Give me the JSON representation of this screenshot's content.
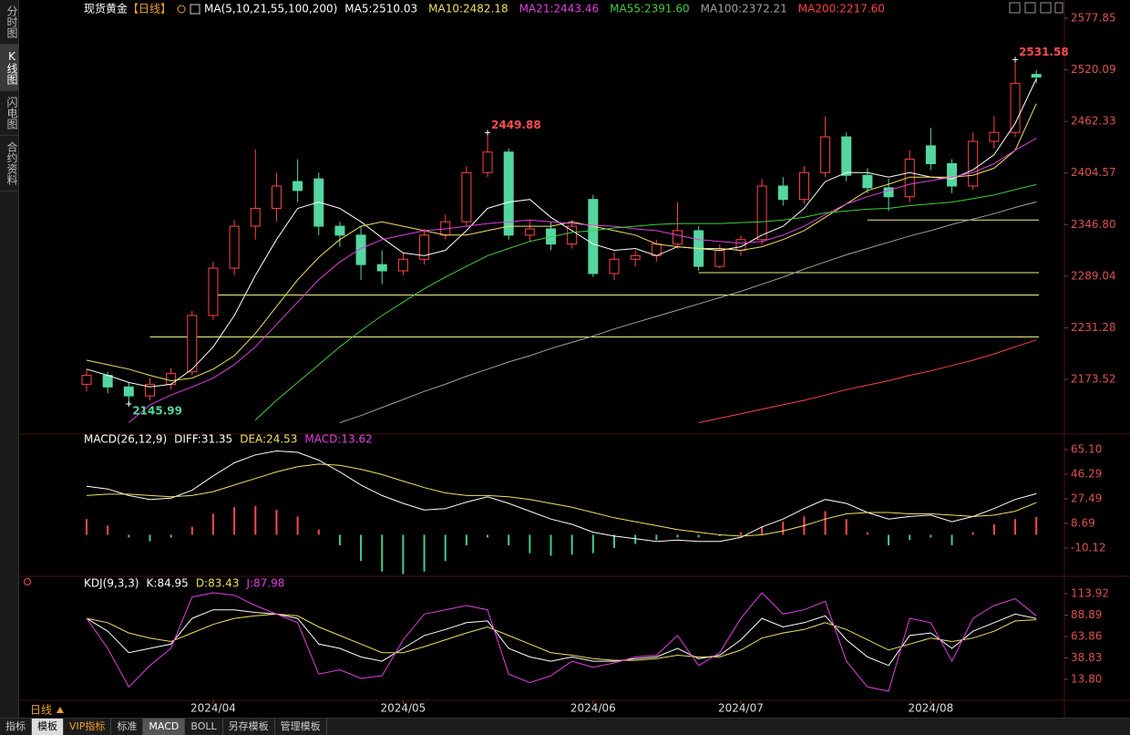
{
  "title": "现货黄金",
  "timeframe_tag": "【日线】",
  "sidebar_tabs": [
    "分时图",
    "K线图",
    "闪电图",
    "合约资料"
  ],
  "timeframe": "日线",
  "toolbar": [
    "指标",
    "模板",
    "VIP指标",
    "标准",
    "MACD",
    "BOLL",
    "另存模板",
    "管理模板"
  ],
  "chart_data": [
    {
      "type": "candlestick",
      "header": "MA(5,10,21,55,100,200)",
      "categories": [
        null,
        null,
        null,
        null,
        null,
        null,
        "2024/04",
        null,
        null,
        null,
        null,
        null,
        null,
        null,
        null,
        "2024/05",
        null,
        null,
        null,
        null,
        null,
        null,
        null,
        null,
        "2024/06",
        null,
        null,
        null,
        null,
        null,
        null,
        "2024/07",
        null,
        null,
        null,
        null,
        null,
        null,
        null,
        null,
        "2024/08",
        null,
        null,
        null,
        null,
        null
      ],
      "candles": [
        [
          2168,
          2185,
          2160,
          2178
        ],
        [
          2178,
          2182,
          2158,
          2165
        ],
        [
          2165,
          2170,
          2145.99,
          2155
        ],
        [
          2155,
          2175,
          2150,
          2168
        ],
        [
          2168,
          2186,
          2162,
          2180
        ],
        [
          2182,
          2250,
          2178,
          2245
        ],
        [
          2245,
          2305,
          2240,
          2298
        ],
        [
          2298,
          2352,
          2290,
          2345
        ],
        [
          2345,
          2431,
          2330,
          2365
        ],
        [
          2365,
          2405,
          2350,
          2390
        ],
        [
          2395,
          2420,
          2372,
          2385
        ],
        [
          2398,
          2405,
          2335,
          2345
        ],
        [
          2345,
          2350,
          2322,
          2335
        ],
        [
          2335,
          2345,
          2285,
          2302
        ],
        [
          2302,
          2318,
          2280,
          2295
        ],
        [
          2295,
          2315,
          2290,
          2308
        ],
        [
          2308,
          2342,
          2302,
          2335
        ],
        [
          2335,
          2358,
          2330,
          2350
        ],
        [
          2350,
          2412,
          2345,
          2405
        ],
        [
          2405,
          2449.88,
          2400,
          2428
        ],
        [
          2428,
          2432,
          2330,
          2335
        ],
        [
          2335,
          2352,
          2328,
          2342
        ],
        [
          2342,
          2350,
          2318,
          2325
        ],
        [
          2325,
          2352,
          2320,
          2345
        ],
        [
          2375,
          2380,
          2288,
          2292
        ],
        [
          2292,
          2315,
          2285,
          2308
        ],
        [
          2308,
          2318,
          2300,
          2312
        ],
        [
          2312,
          2330,
          2305,
          2325
        ],
        [
          2325,
          2372,
          2320,
          2340
        ],
        [
          2340,
          2345,
          2295,
          2300
        ],
        [
          2300,
          2325,
          2298,
          2318
        ],
        [
          2318,
          2335,
          2312,
          2330
        ],
        [
          2330,
          2398,
          2325,
          2390
        ],
        [
          2390,
          2400,
          2368,
          2375
        ],
        [
          2375,
          2412,
          2370,
          2405
        ],
        [
          2405,
          2468,
          2400,
          2445
        ],
        [
          2445,
          2450,
          2395,
          2402
        ],
        [
          2402,
          2410,
          2382,
          2388
        ],
        [
          2388,
          2398,
          2362,
          2378
        ],
        [
          2378,
          2430,
          2372,
          2420
        ],
        [
          2435,
          2455,
          2408,
          2415
        ],
        [
          2415,
          2420,
          2382,
          2390
        ],
        [
          2390,
          2450,
          2386,
          2440
        ],
        [
          2440,
          2468,
          2432,
          2450
        ],
        [
          2450,
          2531.58,
          2445,
          2505
        ],
        [
          2515,
          2520,
          2505,
          2512
        ]
      ],
      "up_color": "#ff4444",
      "down_color": "#54d6a0",
      "series": [
        {
          "name": "MA5:2510.03",
          "color": "#ffffff",
          "values": [
            2185,
            2178,
            2170,
            2165,
            2168,
            2185,
            2210,
            2245,
            2290,
            2330,
            2365,
            2372,
            2365,
            2350,
            2332,
            2315,
            2312,
            2318,
            2340,
            2365,
            2372,
            2375,
            2355,
            2340,
            2325,
            2318,
            2320,
            2312,
            2322,
            2320,
            2318,
            2322,
            2335,
            2345,
            2365,
            2395,
            2405,
            2405,
            2400,
            2405,
            2400,
            2398,
            2408,
            2425,
            2460,
            2510.03
          ]
        },
        {
          "name": "MA10:2482.18",
          "color": "#f0e060",
          "values": [
            2195,
            2190,
            2185,
            2178,
            2172,
            2175,
            2185,
            2200,
            2225,
            2255,
            2285,
            2310,
            2330,
            2345,
            2350,
            2345,
            2340,
            2335,
            2335,
            2340,
            2345,
            2345,
            2345,
            2350,
            2345,
            2340,
            2335,
            2325,
            2322,
            2320,
            2320,
            2318,
            2322,
            2330,
            2340,
            2355,
            2370,
            2385,
            2392,
            2400,
            2400,
            2400,
            2402,
            2410,
            2430,
            2482.18
          ]
        },
        {
          "name": "MA21:2443.46",
          "color": "#e040e0",
          "values": [
            null,
            null,
            2125,
            2145,
            2156,
            2165,
            2175,
            2190,
            2210,
            2235,
            2260,
            2285,
            2305,
            2320,
            2330,
            2335,
            2340,
            2342,
            2345,
            2348,
            2350,
            2352,
            2350,
            2348,
            2346,
            2345,
            2342,
            2340,
            2335,
            2330,
            2328,
            2326,
            2328,
            2335,
            2345,
            2358,
            2370,
            2378,
            2385,
            2392,
            2396,
            2400,
            2405,
            2415,
            2430,
            2443.46
          ]
        },
        {
          "name": "MA55:2391.60",
          "color": "#40d040",
          "values": [
            null,
            null,
            null,
            null,
            null,
            null,
            null,
            null,
            2128,
            2150,
            2170,
            2190,
            2210,
            2228,
            2245,
            2260,
            2275,
            2288,
            2300,
            2312,
            2320,
            2328,
            2333,
            2338,
            2340,
            2343,
            2345,
            2347,
            2348,
            2348,
            2348,
            2349,
            2350,
            2352,
            2355,
            2360,
            2362,
            2364,
            2365,
            2368,
            2370,
            2372,
            2376,
            2380,
            2386,
            2391.6
          ]
        },
        {
          "name": "MA100:2372.21",
          "color": "#a0a0a0",
          "values": [
            null,
            null,
            null,
            null,
            null,
            null,
            null,
            null,
            null,
            null,
            null,
            null,
            2125,
            2133,
            2142,
            2151,
            2160,
            2168,
            2177,
            2185,
            2193,
            2200,
            2208,
            2215,
            2222,
            2230,
            2237,
            2244,
            2251,
            2258,
            2265,
            2272,
            2280,
            2288,
            2297,
            2305,
            2313,
            2320,
            2327,
            2334,
            2340,
            2347,
            2353,
            2359,
            2366,
            2372.21
          ]
        },
        {
          "name": "MA200:2217.60",
          "color": "#ff4040",
          "values": [
            null,
            null,
            null,
            null,
            null,
            null,
            null,
            null,
            null,
            null,
            null,
            null,
            null,
            null,
            null,
            null,
            null,
            null,
            null,
            null,
            null,
            null,
            null,
            null,
            null,
            null,
            null,
            null,
            null,
            2125,
            2130,
            2135,
            2140,
            2145,
            2150,
            2156,
            2162,
            2167,
            2172,
            2178,
            2183,
            2189,
            2195,
            2202,
            2210,
            2217.6
          ]
        }
      ],
      "hlines": [
        {
          "value": 2352,
          "start": 37
        },
        {
          "value": 2293,
          "start": 29
        },
        {
          "value": 2268,
          "start": 6
        },
        {
          "value": 2221,
          "start": 3
        }
      ],
      "hline_color": "#f0f080",
      "annotations": [
        {
          "value": 2531.58,
          "color": "#ff4d4d"
        },
        {
          "value": 2449.88,
          "color": "#ff4d4d"
        },
        {
          "value": 2145.99,
          "color": "#54d6a0"
        }
      ],
      "ylim": [
        2114.3,
        2590.1
      ],
      "yticks": [
        2577.85,
        2520.09,
        2462.33,
        2404.57,
        {
          "value": 2346.8,
          "label": "2346.80"
        },
        2289.04,
        2231.28,
        2173.52
      ]
    },
    {
      "type": "macd",
      "header": "MACD(26,12,9)",
      "series": [
        {
          "name": "DIFF:31.35",
          "color": "#ffffff",
          "values": [
            37,
            35,
            30,
            27,
            28,
            34,
            45,
            55,
            61,
            64,
            63,
            57,
            48,
            38,
            30,
            24,
            19,
            20,
            25,
            29,
            24,
            18,
            12,
            8,
            2,
            -1,
            -3,
            -5,
            -4,
            -5,
            -5,
            -2,
            6,
            12,
            20,
            27,
            24,
            17,
            12,
            14,
            15,
            10,
            14,
            20,
            27,
            31.35
          ]
        },
        {
          "name": "DEA:24.53",
          "color": "#f0e060",
          "values": [
            30,
            31,
            31,
            30,
            29,
            30,
            33,
            38,
            43,
            48,
            52,
            54,
            53,
            50,
            46,
            41,
            36,
            32,
            30,
            30,
            29,
            27,
            24,
            21,
            17,
            13,
            10,
            7,
            4,
            2,
            0,
            -1,
            0,
            3,
            7,
            12,
            16,
            17,
            17,
            16,
            16,
            15,
            14,
            15,
            18,
            24.53
          ]
        }
      ],
      "bars": {
        "name": "MACD:13.62",
        "color": "#e040e0",
        "up_color": "#ff4a4a",
        "down_color": "#3fcf8e",
        "values": [
          12,
          7,
          -2,
          -5,
          -2,
          6,
          16,
          21,
          22,
          19,
          14,
          4,
          -8,
          -20,
          -28,
          -30,
          -28,
          -20,
          -8,
          -2,
          -8,
          -14,
          -16,
          -15,
          -14,
          -10,
          -7,
          -4,
          -2,
          -2,
          -1,
          2,
          6,
          10,
          14,
          18,
          12,
          2,
          -8,
          -4,
          -2,
          -8,
          2,
          8,
          12,
          13.62
        ]
      },
      "ylim": [
        -30.3,
        75.5
      ],
      "yticks": [
        {
          "value": 65.1,
          "label": "65.10"
        },
        46.29,
        27.49,
        8.69,
        -10.12
      ]
    },
    {
      "type": "kdj",
      "header": "KDJ(9,3,3)",
      "series": [
        {
          "name": "K:84.95",
          "color": "#ffffff",
          "values": [
            85,
            70,
            45,
            50,
            55,
            85,
            95,
            95,
            92,
            90,
            85,
            55,
            50,
            40,
            35,
            50,
            65,
            72,
            80,
            82,
            50,
            40,
            35,
            40,
            35,
            35,
            38,
            40,
            50,
            38,
            42,
            60,
            85,
            75,
            80,
            88,
            60,
            40,
            30,
            65,
            68,
            50,
            70,
            80,
            90,
            84.95
          ]
        },
        {
          "name": "D:83.43",
          "color": "#f0e060",
          "values": [
            85,
            80,
            68,
            62,
            58,
            68,
            78,
            85,
            88,
            90,
            88,
            75,
            65,
            55,
            45,
            45,
            52,
            60,
            68,
            75,
            65,
            55,
            45,
            42,
            38,
            36,
            36,
            38,
            42,
            40,
            40,
            48,
            62,
            68,
            72,
            80,
            72,
            60,
            48,
            55,
            62,
            58,
            62,
            70,
            82,
            83.43
          ]
        },
        {
          "name": "J:87.98",
          "color": "#e040e0",
          "values": [
            85,
            50,
            5,
            30,
            50,
            110,
            115,
            112,
            100,
            90,
            80,
            20,
            25,
            15,
            18,
            60,
            90,
            95,
            100,
            95,
            20,
            10,
            18,
            35,
            28,
            33,
            40,
            42,
            65,
            30,
            45,
            85,
            115,
            90,
            95,
            105,
            35,
            5,
            0,
            85,
            80,
            35,
            85,
            100,
            108,
            87.98
          ]
        }
      ],
      "ylim": [
        -10.7,
        128.8
      ],
      "yticks": [
        {
          "value": 113.92,
          "label": "113.92"
        },
        88.89,
        63.86,
        38.83,
        {
          "value": 13.8,
          "label": "13.80"
        }
      ]
    }
  ]
}
